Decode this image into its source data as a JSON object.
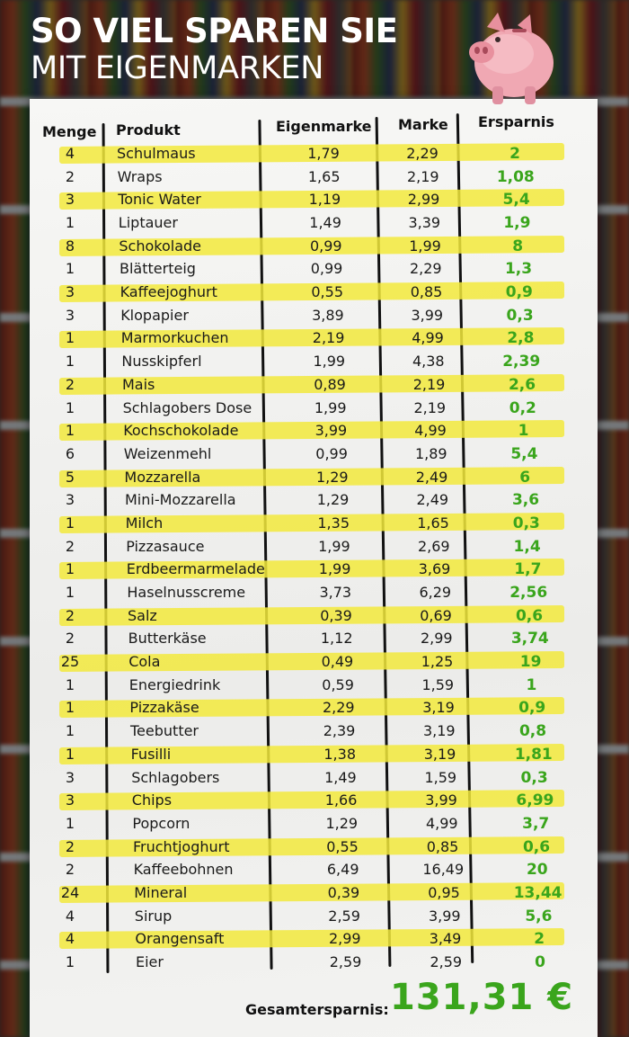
{
  "title": {
    "line1": "SO VIEL SPAREN SIE",
    "line2": "MIT EIGENMARKEN"
  },
  "columns": {
    "menge": "Menge",
    "produkt": "Produkt",
    "eigenmarke": "Eigenmarke",
    "marke": "Marke",
    "ersparnis": "Ersparnis"
  },
  "rows": [
    {
      "menge": "4",
      "produkt": "Schulmaus",
      "eigenmarke": "1,79",
      "marke": "2,29",
      "ersparnis": "2",
      "highlight": true
    },
    {
      "menge": "2",
      "produkt": "Wraps",
      "eigenmarke": "1,65",
      "marke": "2,19",
      "ersparnis": "1,08",
      "highlight": false
    },
    {
      "menge": "3",
      "produkt": "Tonic Water",
      "eigenmarke": "1,19",
      "marke": "2,99",
      "ersparnis": "5,4",
      "highlight": true
    },
    {
      "menge": "1",
      "produkt": "Liptauer",
      "eigenmarke": "1,49",
      "marke": "3,39",
      "ersparnis": "1,9",
      "highlight": false
    },
    {
      "menge": "8",
      "produkt": "Schokolade",
      "eigenmarke": "0,99",
      "marke": "1,99",
      "ersparnis": "8",
      "highlight": true
    },
    {
      "menge": "1",
      "produkt": "Blätterteig",
      "eigenmarke": "0,99",
      "marke": "2,29",
      "ersparnis": "1,3",
      "highlight": false
    },
    {
      "menge": "3",
      "produkt": "Kaffeejoghurt",
      "eigenmarke": "0,55",
      "marke": "0,85",
      "ersparnis": "0,9",
      "highlight": true
    },
    {
      "menge": "3",
      "produkt": "Klopapier",
      "eigenmarke": "3,89",
      "marke": "3,99",
      "ersparnis": "0,3",
      "highlight": false
    },
    {
      "menge": "1",
      "produkt": "Marmorkuchen",
      "eigenmarke": "2,19",
      "marke": "4,99",
      "ersparnis": "2,8",
      "highlight": true
    },
    {
      "menge": "1",
      "produkt": "Nusskipferl",
      "eigenmarke": "1,99",
      "marke": "4,38",
      "ersparnis": "2,39",
      "highlight": false
    },
    {
      "menge": "2",
      "produkt": "Mais",
      "eigenmarke": "0,89",
      "marke": "2,19",
      "ersparnis": "2,6",
      "highlight": true
    },
    {
      "menge": "1",
      "produkt": "Schlagobers Dose",
      "eigenmarke": "1,99",
      "marke": "2,19",
      "ersparnis": "0,2",
      "highlight": false
    },
    {
      "menge": "1",
      "produkt": "Kochschokolade",
      "eigenmarke": "3,99",
      "marke": "4,99",
      "ersparnis": "1",
      "highlight": true
    },
    {
      "menge": "6",
      "produkt": "Weizenmehl",
      "eigenmarke": "0,99",
      "marke": "1,89",
      "ersparnis": "5,4",
      "highlight": false
    },
    {
      "menge": "5",
      "produkt": "Mozzarella",
      "eigenmarke": "1,29",
      "marke": "2,49",
      "ersparnis": "6",
      "highlight": true
    },
    {
      "menge": "3",
      "produkt": "Mini-Mozzarella",
      "eigenmarke": "1,29",
      "marke": "2,49",
      "ersparnis": "3,6",
      "highlight": false
    },
    {
      "menge": "1",
      "produkt": "Milch",
      "eigenmarke": "1,35",
      "marke": "1,65",
      "ersparnis": "0,3",
      "highlight": true
    },
    {
      "menge": "2",
      "produkt": "Pizzasauce",
      "eigenmarke": "1,99",
      "marke": "2,69",
      "ersparnis": "1,4",
      "highlight": false
    },
    {
      "menge": "1",
      "produkt": "Erdbeermarmelade",
      "eigenmarke": "1,99",
      "marke": "3,69",
      "ersparnis": "1,7",
      "highlight": true
    },
    {
      "menge": "1",
      "produkt": "Haselnusscreme",
      "eigenmarke": "3,73",
      "marke": "6,29",
      "ersparnis": "2,56",
      "highlight": false
    },
    {
      "menge": "2",
      "produkt": "Salz",
      "eigenmarke": "0,39",
      "marke": "0,69",
      "ersparnis": "0,6",
      "highlight": true
    },
    {
      "menge": "2",
      "produkt": "Butterkäse",
      "eigenmarke": "1,12",
      "marke": "2,99",
      "ersparnis": "3,74",
      "highlight": false
    },
    {
      "menge": "25",
      "produkt": "Cola",
      "eigenmarke": "0,49",
      "marke": "1,25",
      "ersparnis": "19",
      "highlight": true
    },
    {
      "menge": "1",
      "produkt": "Energiedrink",
      "eigenmarke": "0,59",
      "marke": "1,59",
      "ersparnis": "1",
      "highlight": false
    },
    {
      "menge": "1",
      "produkt": "Pizzakäse",
      "eigenmarke": "2,29",
      "marke": "3,19",
      "ersparnis": "0,9",
      "highlight": true
    },
    {
      "menge": "1",
      "produkt": "Teebutter",
      "eigenmarke": "2,39",
      "marke": "3,19",
      "ersparnis": "0,8",
      "highlight": false
    },
    {
      "menge": "1",
      "produkt": "Fusilli",
      "eigenmarke": "1,38",
      "marke": "3,19",
      "ersparnis": "1,81",
      "highlight": true
    },
    {
      "menge": "3",
      "produkt": "Schlagobers",
      "eigenmarke": "1,49",
      "marke": "1,59",
      "ersparnis": "0,3",
      "highlight": false
    },
    {
      "menge": "3",
      "produkt": "Chips",
      "eigenmarke": "1,66",
      "marke": "3,99",
      "ersparnis": "6,99",
      "highlight": true
    },
    {
      "menge": "1",
      "produkt": "Popcorn",
      "eigenmarke": "1,29",
      "marke": "4,99",
      "ersparnis": "3,7",
      "highlight": false
    },
    {
      "menge": "2",
      "produkt": "Fruchtjoghurt",
      "eigenmarke": "0,55",
      "marke": "0,85",
      "ersparnis": "0,6",
      "highlight": true
    },
    {
      "menge": "2",
      "produkt": "Kaffeebohnen",
      "eigenmarke": "6,49",
      "marke": "16,49",
      "ersparnis": "20",
      "highlight": false
    },
    {
      "menge": "24",
      "produkt": "Mineral",
      "eigenmarke": "0,39",
      "marke": "0,95",
      "ersparnis": "13,44",
      "highlight": true
    },
    {
      "menge": "4",
      "produkt": "Sirup",
      "eigenmarke": "2,59",
      "marke": "3,99",
      "ersparnis": "5,6",
      "highlight": false
    },
    {
      "menge": "4",
      "produkt": "Orangensaft",
      "eigenmarke": "2,99",
      "marke": "3,49",
      "ersparnis": "2",
      "highlight": true
    },
    {
      "menge": "1",
      "produkt": "Eier",
      "eigenmarke": "2,59",
      "marke": "2,59",
      "ersparnis": "0",
      "highlight": false
    }
  ],
  "total": {
    "label": "Gesamtersparnis:",
    "value": "131,31 €"
  },
  "colors": {
    "highlight": "#f2e93c",
    "savings": "#3aa51c",
    "text": "#1a1a1a"
  },
  "icons": {
    "piggy": "piggy-bank-icon"
  }
}
